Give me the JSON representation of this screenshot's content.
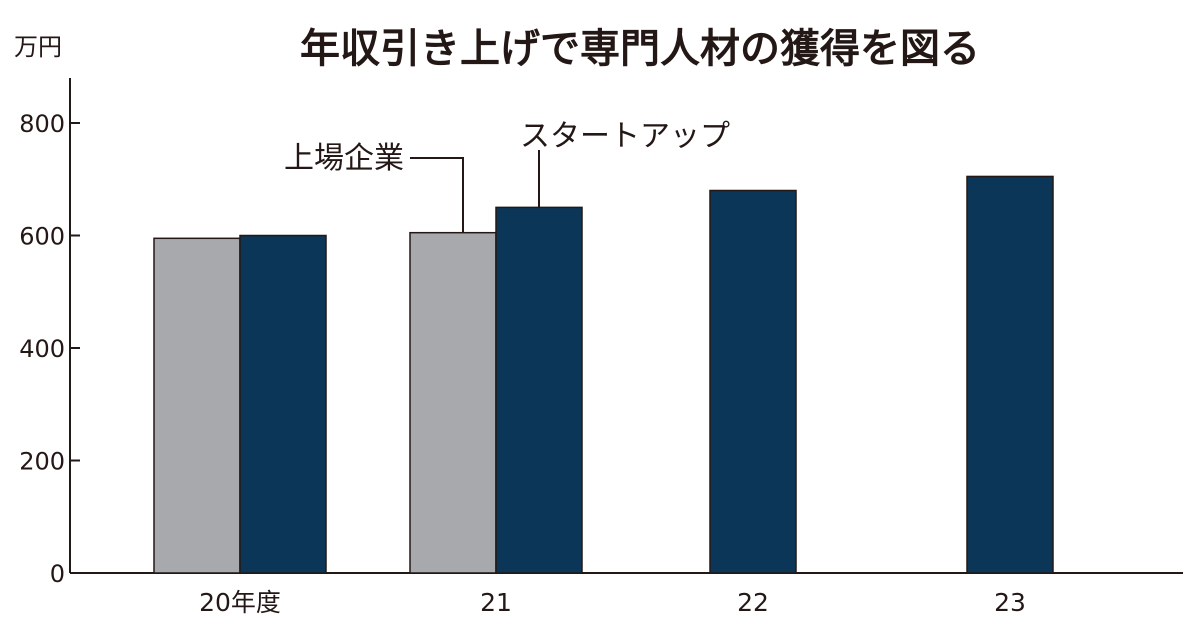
{
  "chart_data": {
    "type": "bar",
    "title": "年収引き上げで専門人材の獲得を図る",
    "ylabel": "万円",
    "xlabel": "",
    "ylim": [
      0,
      880
    ],
    "yticks": [
      0,
      200,
      400,
      600,
      800
    ],
    "categories": [
      "20年度",
      "21",
      "22",
      "23"
    ],
    "series": [
      {
        "name": "上場企業",
        "values": [
          595,
          605,
          null,
          null
        ],
        "color": "#a7a9ac"
      },
      {
        "name": "スタートアップ",
        "values": [
          600,
          650,
          680,
          705
        ],
        "color": "#0c3657"
      }
    ],
    "legend": "callout-labels",
    "grid": false
  }
}
